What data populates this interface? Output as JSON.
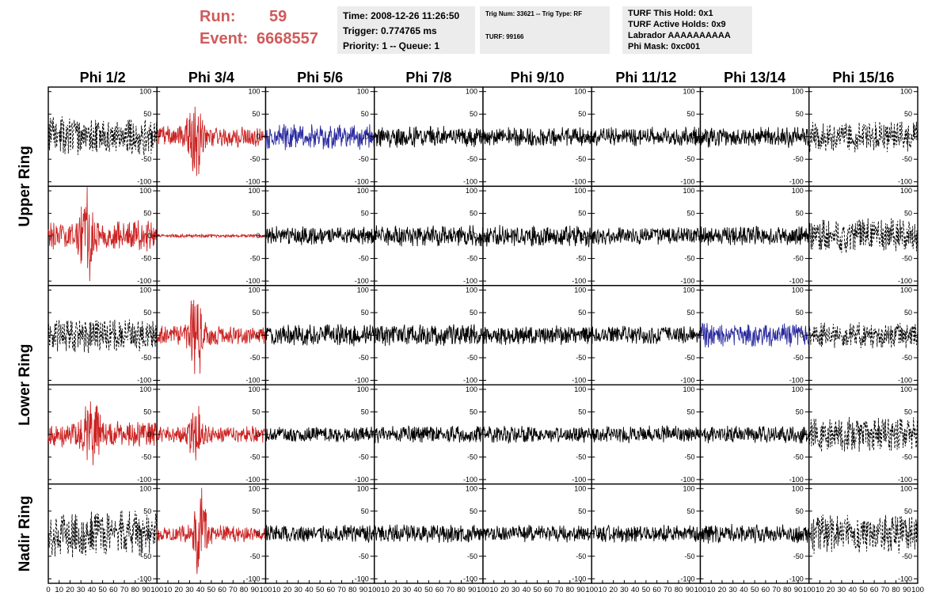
{
  "header": {
    "run_label": "Run:",
    "run_value": "59",
    "event_label": "Event:",
    "event_value": "6668557",
    "info_box": [
      "Time: 2008-12-26 11:26:50",
      "Trigger: 0.774765 ms",
      "Priority: 1 -- Queue: 1"
    ],
    "trig_box": [
      "Trig Num: 33621 -- Trig Type: RF",
      "TURF: 99166"
    ],
    "turf_box": [
      "TURF This Hold: 0x1",
      "TURF Active Holds: 0x9",
      "Labrador AAAAAAAAAA",
      "Phi Mask: 0xc001"
    ]
  },
  "colors": {
    "title": "#d05a5a",
    "red": "#cc2222",
    "blue": "#2a2aa0",
    "black": "#000000",
    "box": "#ececec"
  },
  "chart_data": {
    "type": "line",
    "description_grid": "8 columns x 5 rows of waveform panels",
    "columns": [
      "Phi 1/2",
      "Phi 3/4",
      "Phi 5/6",
      "Phi 7/8",
      "Phi 9/10",
      "Phi 11/12",
      "Phi 13/14",
      "Phi 15/16"
    ],
    "row_groups": [
      {
        "label": "Upper Ring",
        "rows": [
          0,
          1
        ]
      },
      {
        "label": "Lower Ring",
        "rows": [
          2,
          3
        ]
      },
      {
        "label": "Nadir Ring",
        "rows": [
          4
        ]
      }
    ],
    "xlim": [
      0,
      100
    ],
    "ylim": [
      -110,
      110
    ],
    "x_ticks": [
      "0",
      "10",
      "20",
      "30",
      "40",
      "50",
      "60",
      "70",
      "80",
      "90",
      "100"
    ],
    "y_ticks": [
      100,
      50,
      0,
      -50,
      -100
    ],
    "panels": [
      [
        {
          "style": "dashed",
          "color": "black",
          "amplitude": 45,
          "burst_center": null,
          "seed": 11
        },
        {
          "style": "solid",
          "color": "red",
          "amplitude": 45,
          "burst_center": 35,
          "burst_amp": 100,
          "seed": 12
        },
        {
          "style": "solid",
          "color": "blue",
          "amplitude": 30,
          "burst_center": null,
          "seed": 13
        },
        {
          "style": "solid",
          "color": "black",
          "amplitude": 25,
          "burst_center": null,
          "seed": 14
        },
        {
          "style": "solid",
          "color": "black",
          "amplitude": 22,
          "burst_center": null,
          "seed": 15
        },
        {
          "style": "solid",
          "color": "black",
          "amplitude": 22,
          "burst_center": null,
          "seed": 16
        },
        {
          "style": "solid",
          "color": "black",
          "amplitude": 25,
          "burst_center": null,
          "seed": 17
        },
        {
          "style": "dashed",
          "color": "black",
          "amplitude": 35,
          "burst_center": null,
          "seed": 18
        }
      ],
      [
        {
          "style": "solid",
          "color": "red",
          "amplitude": 65,
          "burst_center": 35,
          "burst_amp": 90,
          "seed": 21
        },
        {
          "style": "solid",
          "color": "red",
          "amplitude": 4,
          "burst_center": null,
          "seed": 22
        },
        {
          "style": "solid",
          "color": "black",
          "amplitude": 22,
          "burst_center": null,
          "seed": 23
        },
        {
          "style": "solid",
          "color": "black",
          "amplitude": 25,
          "burst_center": null,
          "seed": 24
        },
        {
          "style": "solid",
          "color": "black",
          "amplitude": 25,
          "burst_center": null,
          "seed": 25
        },
        {
          "style": "solid",
          "color": "black",
          "amplitude": 20,
          "burst_center": null,
          "seed": 26
        },
        {
          "style": "solid",
          "color": "black",
          "amplitude": 22,
          "burst_center": null,
          "seed": 27
        },
        {
          "style": "dashed",
          "color": "black",
          "amplitude": 40,
          "burst_center": null,
          "seed": 28
        }
      ],
      [
        {
          "style": "dashed",
          "color": "black",
          "amplitude": 40,
          "burst_center": null,
          "seed": 31
        },
        {
          "style": "solid",
          "color": "red",
          "amplitude": 40,
          "burst_center": 36,
          "burst_amp": 105,
          "seed": 32
        },
        {
          "style": "solid",
          "color": "black",
          "amplitude": 25,
          "burst_center": null,
          "seed": 33
        },
        {
          "style": "solid",
          "color": "black",
          "amplitude": 25,
          "burst_center": null,
          "seed": 34
        },
        {
          "style": "solid",
          "color": "black",
          "amplitude": 22,
          "burst_center": null,
          "seed": 35
        },
        {
          "style": "solid",
          "color": "black",
          "amplitude": 22,
          "burst_center": null,
          "seed": 36
        },
        {
          "style": "solid",
          "color": "blue",
          "amplitude": 28,
          "burst_center": null,
          "seed": 37
        },
        {
          "style": "dashed",
          "color": "black",
          "amplitude": 30,
          "burst_center": null,
          "seed": 38
        }
      ],
      [
        {
          "style": "solid",
          "color": "red",
          "amplitude": 55,
          "burst_center": 40,
          "burst_amp": 95,
          "seed": 41
        },
        {
          "style": "solid",
          "color": "red",
          "amplitude": 35,
          "burst_center": 36,
          "burst_amp": 60,
          "seed": 42
        },
        {
          "style": "solid",
          "color": "black",
          "amplitude": 18,
          "burst_center": null,
          "seed": 43
        },
        {
          "style": "solid",
          "color": "black",
          "amplitude": 20,
          "burst_center": null,
          "seed": 44
        },
        {
          "style": "solid",
          "color": "black",
          "amplitude": 20,
          "burst_center": null,
          "seed": 45
        },
        {
          "style": "solid",
          "color": "black",
          "amplitude": 20,
          "burst_center": null,
          "seed": 46
        },
        {
          "style": "solid",
          "color": "black",
          "amplitude": 20,
          "burst_center": null,
          "seed": 47
        },
        {
          "style": "dashed",
          "color": "black",
          "amplitude": 40,
          "burst_center": null,
          "seed": 48
        }
      ],
      [
        {
          "style": "dashed",
          "color": "black",
          "amplitude": 55,
          "burst_center": null,
          "seed": 51
        },
        {
          "style": "solid",
          "color": "red",
          "amplitude": 35,
          "burst_center": 40,
          "burst_amp": 100,
          "seed": 52
        },
        {
          "style": "solid",
          "color": "black",
          "amplitude": 20,
          "burst_center": null,
          "seed": 53
        },
        {
          "style": "solid",
          "color": "black",
          "amplitude": 22,
          "burst_center": null,
          "seed": 54
        },
        {
          "style": "solid",
          "color": "black",
          "amplitude": 20,
          "burst_center": null,
          "seed": 55
        },
        {
          "style": "solid",
          "color": "black",
          "amplitude": 20,
          "burst_center": null,
          "seed": 56
        },
        {
          "style": "solid",
          "color": "black",
          "amplitude": 22,
          "burst_center": null,
          "seed": 57
        },
        {
          "style": "dashed",
          "color": "black",
          "amplitude": 45,
          "burst_center": null,
          "seed": 58
        }
      ]
    ]
  }
}
